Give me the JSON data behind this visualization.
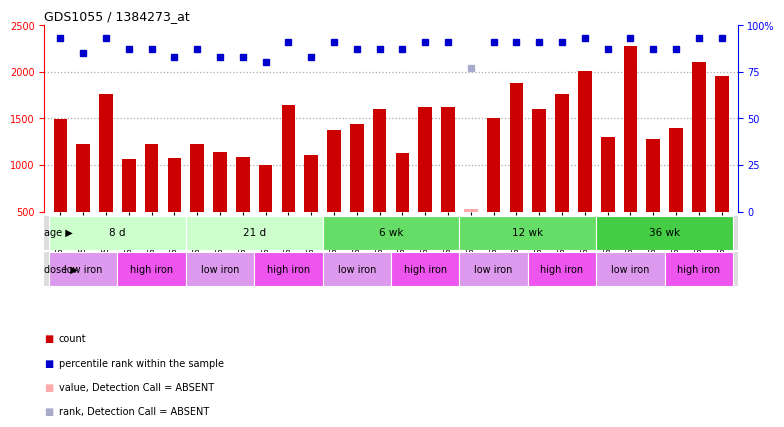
{
  "title": "GDS1055 / 1384273_at",
  "samples": [
    "GSM33580",
    "GSM33581",
    "GSM33582",
    "GSM33577",
    "GSM33578",
    "GSM33579",
    "GSM33574",
    "GSM33575",
    "GSM33576",
    "GSM33571",
    "GSM33572",
    "GSM33573",
    "GSM33568",
    "GSM33569",
    "GSM33570",
    "GSM33565",
    "GSM33566",
    "GSM33567",
    "GSM33562",
    "GSM33563",
    "GSM33564",
    "GSM33559",
    "GSM33560",
    "GSM33561",
    "GSM33555",
    "GSM33556",
    "GSM33557",
    "GSM33551",
    "GSM33552",
    "GSM33553"
  ],
  "counts": [
    1490,
    1230,
    1760,
    1060,
    1230,
    1070,
    1230,
    1140,
    1090,
    1000,
    1640,
    1110,
    1380,
    1440,
    1600,
    1130,
    1620,
    1620,
    null,
    1500,
    1880,
    1600,
    1760,
    2010,
    1300,
    2280,
    1280,
    1400,
    2110,
    1960
  ],
  "absent_count_val": 530,
  "absent_count_idx": 18,
  "percentile_ranks": [
    93,
    85,
    93,
    87,
    87,
    83,
    87,
    83,
    83,
    80,
    91,
    83,
    91,
    87,
    87,
    87,
    91,
    91,
    77,
    91,
    91,
    91,
    91,
    93,
    87,
    93,
    87,
    87,
    93,
    93
  ],
  "absent_rank_idx": 18,
  "age_groups": [
    {
      "label": "8 d",
      "start": 0,
      "end": 6,
      "color": "#ccffcc"
    },
    {
      "label": "21 d",
      "start": 6,
      "end": 12,
      "color": "#ccffcc"
    },
    {
      "label": "6 wk",
      "start": 12,
      "end": 18,
      "color": "#66dd66"
    },
    {
      "label": "12 wk",
      "start": 18,
      "end": 24,
      "color": "#66dd66"
    },
    {
      "label": "36 wk",
      "start": 24,
      "end": 30,
      "color": "#44cc44"
    }
  ],
  "dose_groups": [
    {
      "label": "low iron",
      "start": 0,
      "end": 3,
      "color": "#dd99ee"
    },
    {
      "label": "high iron",
      "start": 3,
      "end": 6,
      "color": "#ee55ee"
    },
    {
      "label": "low iron",
      "start": 6,
      "end": 9,
      "color": "#dd99ee"
    },
    {
      "label": "high iron",
      "start": 9,
      "end": 12,
      "color": "#ee55ee"
    },
    {
      "label": "low iron",
      "start": 12,
      "end": 15,
      "color": "#dd99ee"
    },
    {
      "label": "high iron",
      "start": 15,
      "end": 18,
      "color": "#ee55ee"
    },
    {
      "label": "low iron",
      "start": 18,
      "end": 21,
      "color": "#dd99ee"
    },
    {
      "label": "high iron",
      "start": 21,
      "end": 24,
      "color": "#ee55ee"
    },
    {
      "label": "low iron",
      "start": 24,
      "end": 27,
      "color": "#dd99ee"
    },
    {
      "label": "high iron",
      "start": 27,
      "end": 30,
      "color": "#ee55ee"
    }
  ],
  "bar_color": "#cc0000",
  "absent_bar_color": "#ffaaaa",
  "dot_color": "#0000cc",
  "absent_dot_color": "#aaaacc",
  "ylim_left": [
    500,
    2500
  ],
  "ylim_right": [
    0,
    100
  ],
  "yticks_left": [
    500,
    1000,
    1500,
    2000,
    2500
  ],
  "yticks_right": [
    0,
    25,
    50,
    75,
    100
  ],
  "grid_lines": [
    1000,
    1500,
    2000
  ],
  "bg_color": "#ffffff"
}
